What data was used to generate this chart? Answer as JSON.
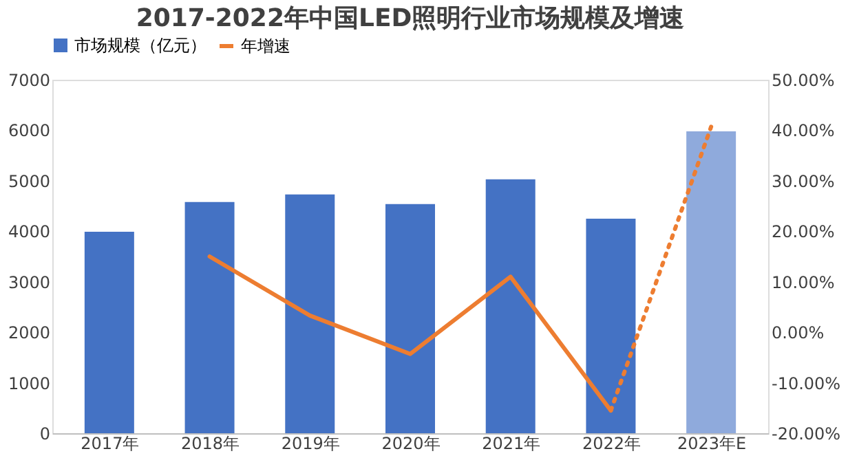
{
  "chart_data": {
    "type": "bar",
    "title": "2017-2022年中国LED照明行业市场规模及增速",
    "categories": [
      "2017年",
      "2018年",
      "2019年",
      "2020年",
      "2021年",
      "2022年",
      "2023年E"
    ],
    "series": [
      {
        "name": "市场规模（亿元）",
        "color": "#4472c4",
        "colors": [
          "#4472c4",
          "#4472c4",
          "#4472c4",
          "#4472c4",
          "#4472c4",
          "#4472c4",
          "#8faadc"
        ],
        "values": [
          3990,
          4580,
          4730,
          4540,
          5030,
          4250,
          5980
        ]
      },
      {
        "name": "年增速",
        "type": "line",
        "axis": "y2",
        "color": "#ed7d31",
        "line_style": "solid",
        "values": [
          null,
          15.0,
          3.3,
          -4.3,
          11.0,
          -15.5,
          null
        ]
      },
      {
        "type": "line",
        "axis": "y2",
        "color": "#ed7d31",
        "line_style": "dotted",
        "values": [
          null,
          null,
          null,
          null,
          null,
          -15.5,
          40.7
        ]
      }
    ],
    "ylim": [
      0,
      7000
    ],
    "yticks": [
      0,
      1000,
      2000,
      3000,
      4000,
      5000,
      6000,
      7000
    ],
    "y2lim": [
      -20,
      50
    ],
    "y2ticks": [
      {
        "value": -20,
        "label": "-20.00%"
      },
      {
        "value": -10,
        "label": "-10.00%"
      },
      {
        "value": 0,
        "label": "0.00%"
      },
      {
        "value": 10,
        "label": "10.00%"
      },
      {
        "value": 20,
        "label": "20.00%"
      },
      {
        "value": 30,
        "label": "30.00%"
      },
      {
        "value": 40,
        "label": "40.00%"
      },
      {
        "value": 50,
        "label": "50.00%"
      }
    ],
    "grid": false,
    "legend": "top"
  }
}
